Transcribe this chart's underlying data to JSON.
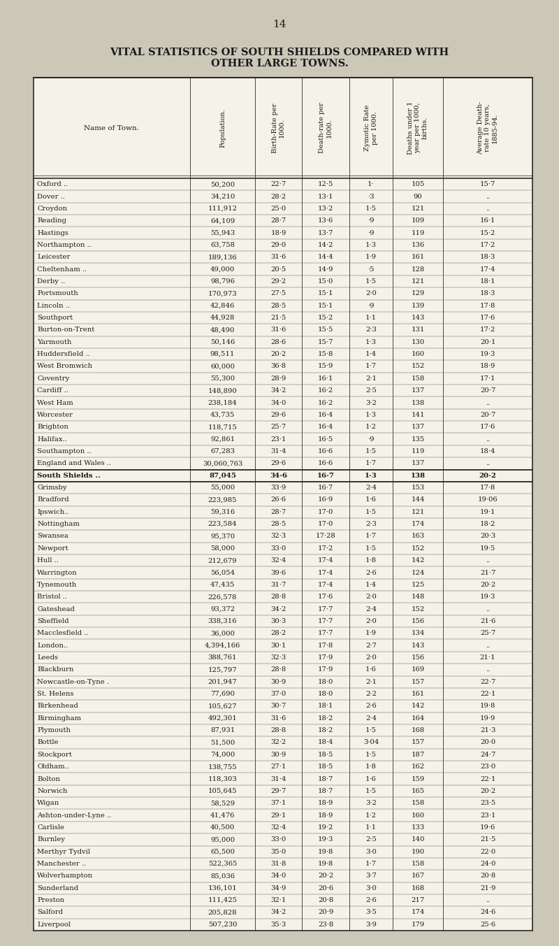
{
  "page_number": "14",
  "title_line1": "VITAL STATISTICS OF SOUTH SHIELDS COMPARED WITH",
  "title_line2": "OTHER LARGE TOWNS.",
  "rows": [
    [
      "Oxford ..",
      "50,200",
      "22·7",
      "12·5",
      "1·",
      "105",
      "15·7"
    ],
    [
      "Dover ..",
      "34,210",
      "28·2",
      "13·1",
      "·3",
      "90",
      ".."
    ],
    [
      "Croydon",
      "111,912",
      "25·0",
      "13·2",
      "1·5",
      "121",
      ".."
    ],
    [
      "Reading",
      "64,109",
      "28·7",
      "13·6",
      "·9",
      "109",
      "16·1"
    ],
    [
      "Hastings",
      "55,943",
      "18·9",
      "13·7",
      "·9",
      "119",
      "15·2"
    ],
    [
      "Northampton ..",
      "63,758",
      "29·0",
      "14·2",
      "1·3",
      "136",
      "17·2"
    ],
    [
      "Leicester",
      "189,136",
      "31·6",
      "14·4",
      "1·9",
      "161",
      "18·3"
    ],
    [
      "Cheltenham ..",
      "49,000",
      "20·5",
      "14·9",
      "·5",
      "128",
      "17·4"
    ],
    [
      "Derby ..",
      "98,796",
      "29·2",
      "15·0",
      "1·5",
      "121",
      "18·1"
    ],
    [
      "Portsmouth",
      "170,973",
      "27·5",
      "15·1",
      "2·0",
      "129",
      "18·3"
    ],
    [
      "Lincoln ..",
      "42,846",
      "28·5",
      "15·1",
      "·9",
      "139",
      "17·8"
    ],
    [
      "Southport",
      "44,928",
      "21·5",
      "15·2",
      "1·1",
      "143",
      "17·6"
    ],
    [
      "Burton-on-Trent",
      "48,490",
      "31·6",
      "15·5",
      "2·3",
      "131",
      "17·2"
    ],
    [
      "Yarmouth",
      "50,146",
      "28·6",
      "15·7",
      "1·3",
      "130",
      "20·1"
    ],
    [
      "Huddersfield ..",
      "98,511",
      "20·2",
      "15·8",
      "1·4",
      "160",
      "19·3"
    ],
    [
      "West Bromwich",
      "60,000",
      "36·8",
      "15·9",
      "1·7",
      "152",
      "18·9"
    ],
    [
      "Coventry",
      "55,300",
      "28·9",
      "16·1",
      "2·1",
      "158",
      "17·1"
    ],
    [
      "Cardiff ..",
      "148,890",
      "34·2",
      "16·2",
      "2·5",
      "137",
      "20·7"
    ],
    [
      "West Ham",
      "238,184",
      "34·0",
      "16·2",
      "3·2",
      "138",
      ".."
    ],
    [
      "Worcester",
      "43,735",
      "29·6",
      "16·4",
      "1·3",
      "141",
      "20·7"
    ],
    [
      "Brighton",
      "118,715",
      "25·7",
      "16·4",
      "1·2",
      "137",
      "17·6"
    ],
    [
      "Halifax..",
      "92,861",
      "23·1",
      "16·5",
      "·9",
      "135",
      ".."
    ],
    [
      "Southampton ..",
      "67,283",
      "31·4",
      "16·6",
      "1·5",
      "119",
      "18·4"
    ],
    [
      "England and Wales ..",
      "30,060,763",
      "29·6",
      "16·6",
      "1·7",
      "137",
      ".."
    ],
    [
      "South Shields ..",
      "87,045",
      "34·6",
      "16·7",
      "1·3",
      "138",
      "20·2"
    ],
    [
      "Grimsby",
      "55,000",
      "33·9",
      "16·7",
      "2·4",
      "153",
      "17·8"
    ],
    [
      "Bradford",
      "223,985",
      "26·6",
      "16·9",
      "1·6",
      "144",
      "19·06"
    ],
    [
      "Ipswich..",
      "59,316",
      "28·7",
      "17·0",
      "1·5",
      "121",
      "19·1"
    ],
    [
      "Nottingham",
      "223,584",
      "28·5",
      "17·0",
      "2·3",
      "174",
      "18·2"
    ],
    [
      "Swansea",
      "95,370",
      "32·3",
      "17·28",
      "1·7",
      "163",
      "20·3"
    ],
    [
      "Newport",
      "58,000",
      "33·0",
      "17·2",
      "1·5",
      "152",
      "19·5"
    ],
    [
      "Hull ..",
      "212,679",
      "32·4",
      "17·4",
      "1·8",
      "142",
      ".."
    ],
    [
      "Warrington",
      "56,054",
      "39·6",
      "17·4",
      "2·6",
      "124",
      "21·7"
    ],
    [
      "Tynemouth",
      "47,435",
      "31·7",
      "17·4",
      "1·4",
      "125",
      "20·2"
    ],
    [
      "Bristol ..",
      "226,578",
      "28·8",
      "17·6",
      "2·0",
      "148",
      "19·3"
    ],
    [
      "Gateshead",
      "93,372",
      "34·2",
      "17·7",
      "2·4",
      "152",
      ".."
    ],
    [
      "Sheffield",
      "338,316",
      "30·3",
      "17·7",
      "2·0",
      "156",
      "21·6"
    ],
    [
      "Macclesfield ..",
      "36,000",
      "28·2",
      "17·7",
      "1·9",
      "134",
      "25·7"
    ],
    [
      "London..",
      "4,394,166",
      "30·1",
      "17·8",
      "2·7",
      "143",
      ".."
    ],
    [
      "Leeds",
      "388,761",
      "32·3",
      "17·9",
      "2·0",
      "156",
      "21·1"
    ],
    [
      "Blackburn",
      "125,797",
      "28·8",
      "17·9",
      "1·6",
      "169",
      ".."
    ],
    [
      "Newcastle-on-Tyne .",
      "201,947",
      "30·9",
      "18·0",
      "2·1",
      "157",
      "22·7"
    ],
    [
      "St. Helens",
      "77,690",
      "37·0",
      "18·0",
      "2·2",
      "161",
      "22·1"
    ],
    [
      "Birkenhead",
      "105,627",
      "30·7",
      "18·1",
      "2·6",
      "142",
      "19·8"
    ],
    [
      "Birmingham",
      "492,301",
      "31·6",
      "18·2",
      "2·4",
      "164",
      "19·9"
    ],
    [
      "Plymouth",
      "87,931",
      "28·8",
      "18·2",
      "1·5",
      "168",
      "21·3"
    ],
    [
      "Bottle",
      "51,500",
      "32·2",
      "18·4",
      "3·04",
      "157",
      "20·0"
    ],
    [
      "Stockport",
      "74,000",
      "30·9",
      "18·5",
      "1·5",
      "187",
      "24·7"
    ],
    [
      "Oldham..",
      "138,755",
      "27·1",
      "18·5",
      "1·8",
      "162",
      "23·0"
    ],
    [
      "Bolton",
      "118,303",
      "31·4",
      "18·7",
      "1·6",
      "159",
      "22·1"
    ],
    [
      "Norwich",
      "105,645",
      "29·7",
      "18·7",
      "1·5",
      "165",
      "20·2"
    ],
    [
      "Wigan",
      "58,529",
      "37·1",
      "18·9",
      "3·2",
      "158",
      "23·5"
    ],
    [
      "Ashton-under-Lyne ..",
      "41,476",
      "29·1",
      "18·9",
      "1·2",
      "160",
      "23·1"
    ],
    [
      "Carlisle",
      "40,500",
      "32·4",
      "19·2",
      "1·1",
      "133",
      "19·6"
    ],
    [
      "Burnley",
      "95,000",
      "33·0",
      "19·3",
      "2·5",
      "140",
      "21·5"
    ],
    [
      "Merthyr Tydvil",
      "65,500",
      "35·0",
      "19·8",
      "3·0",
      "190",
      "22·0"
    ],
    [
      "Manchester ..",
      "522,365",
      "31·8",
      "19·8",
      "1·7",
      "158",
      "24·0"
    ],
    [
      "Wolverhampton",
      "85,036",
      "34·0",
      "20·2",
      "3·7",
      "167",
      "20·8"
    ],
    [
      "Sunderland",
      "136,101",
      "34·9",
      "20·6",
      "3·0",
      "168",
      "21·9"
    ],
    [
      "Preston",
      "111,425",
      "32·1",
      "20·8",
      "2·6",
      "217",
      ".."
    ],
    [
      "Salford",
      "205,828",
      "34·2",
      "20·9",
      "3·5",
      "174",
      "24·6"
    ],
    [
      "Liverpool",
      "507,230",
      "35·3",
      "23·8",
      "3·9",
      "179",
      "25·6"
    ]
  ],
  "south_shields_row_index": 24,
  "bg_color": "#cbc8b8",
  "table_bg": "#f5f2e8",
  "text_color": "#1a1a1a",
  "line_color": "#2a2a2a",
  "title_fontsize": 10.5,
  "header_fontsize": 7.0,
  "cell_fontsize": 7.2
}
